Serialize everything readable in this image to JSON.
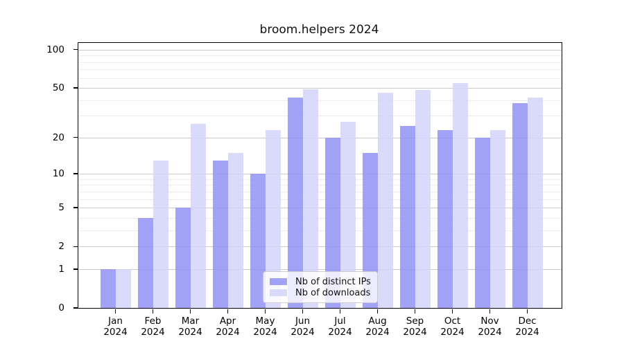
{
  "title": "broom.helpers 2024",
  "chart_data": {
    "type": "bar",
    "title": "broom.helpers 2024",
    "categories": [
      "Jan",
      "Feb",
      "Mar",
      "Apr",
      "May",
      "Jun",
      "Jul",
      "Aug",
      "Sep",
      "Oct",
      "Nov",
      "Dec"
    ],
    "category_year": "2024",
    "series": [
      {
        "name": "Nb of distinct IPs",
        "color": "rgba(146,146,246,0.85)",
        "values": [
          1,
          4,
          5,
          13,
          10,
          42,
          20,
          15,
          25,
          23,
          20,
          38
        ]
      },
      {
        "name": "Nb of downloads",
        "color": "rgba(211,211,250,0.85)",
        "values": [
          1,
          13,
          26,
          15,
          23,
          49,
          27,
          46,
          48,
          55,
          23,
          42
        ]
      }
    ],
    "xlabel": "",
    "ylabel": "",
    "yscale": "log1p",
    "ylim": [
      0,
      113
    ],
    "yticks_major": [
      0,
      1,
      2,
      5,
      10,
      20,
      50,
      100
    ],
    "yticks_minor": [
      3,
      4,
      6,
      7,
      8,
      9,
      30,
      40,
      60,
      70,
      80,
      90
    ],
    "grid": true,
    "legend_position": "bottom-center"
  },
  "colors": {
    "grid_major": "#c9c9c9",
    "grid_minor": "#ebebeb",
    "axis": "#000000",
    "background": "#ffffff"
  }
}
